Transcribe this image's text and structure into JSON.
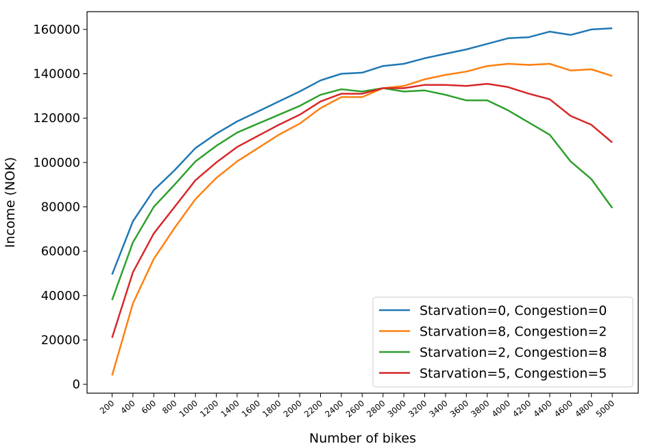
{
  "chart_data": {
    "type": "line",
    "xlabel": "Number of bikes",
    "ylabel": "Income (NOK)",
    "x": [
      200,
      400,
      600,
      800,
      1000,
      1200,
      1400,
      1600,
      1800,
      2000,
      2200,
      2400,
      2600,
      2800,
      3000,
      3200,
      3400,
      3600,
      3800,
      4000,
      4200,
      4400,
      4600,
      4800,
      5000
    ],
    "x_tick_labels": [
      "200",
      "400",
      "600",
      "800",
      "1000",
      "1200",
      "1400",
      "1600",
      "1800",
      "2000",
      "2200",
      "2400",
      "2600",
      "2800",
      "3000",
      "3200",
      "3400",
      "3600",
      "3800",
      "4000",
      "4200",
      "4400",
      "4600",
      "4800",
      "5000"
    ],
    "y_ticks": [
      0,
      20000,
      40000,
      60000,
      80000,
      100000,
      120000,
      140000,
      160000
    ],
    "y_tick_labels": [
      "0",
      "20000",
      "40000",
      "60000",
      "80000",
      "100000",
      "120000",
      "140000",
      "160000"
    ],
    "ylim": [
      -4000,
      168000
    ],
    "grid": false,
    "legend_position": "lower-right",
    "series": [
      {
        "name": "Starvation=0, Congestion=0",
        "color": "#1f77b4",
        "values": [
          49500,
          73500,
          87500,
          96500,
          106500,
          113000,
          118500,
          123000,
          127500,
          132000,
          137000,
          140000,
          140500,
          143500,
          144500,
          147000,
          149000,
          151000,
          153500,
          156000,
          156500,
          159000,
          157500,
          160000,
          160500
        ]
      },
      {
        "name": "Starvation=8, Congestion=2",
        "color": "#ff7f0e",
        "values": [
          4000,
          36500,
          56500,
          70500,
          83500,
          93000,
          100500,
          106500,
          112500,
          117500,
          124500,
          129500,
          129500,
          133500,
          134500,
          137500,
          139500,
          141000,
          143500,
          144500,
          144000,
          144500,
          141500,
          142000,
          139000
        ]
      },
      {
        "name": "Starvation=2, Congestion=8",
        "color": "#2ca02c",
        "values": [
          38000,
          64000,
          80000,
          90000,
          100500,
          107500,
          113500,
          117500,
          121500,
          125500,
          130500,
          133000,
          132000,
          133500,
          132000,
          132500,
          130500,
          128000,
          128000,
          123500,
          118000,
          112500,
          100500,
          92500,
          79500
        ]
      },
      {
        "name": "Starvation=5, Congestion=5",
        "color": "#d62728",
        "values": [
          21000,
          50500,
          68000,
          80000,
          92000,
          100000,
          107000,
          112000,
          117000,
          121500,
          127500,
          131000,
          131000,
          133500,
          133500,
          135000,
          135000,
          134500,
          135500,
          134000,
          131000,
          128500,
          121000,
          117000,
          109000
        ]
      }
    ]
  }
}
